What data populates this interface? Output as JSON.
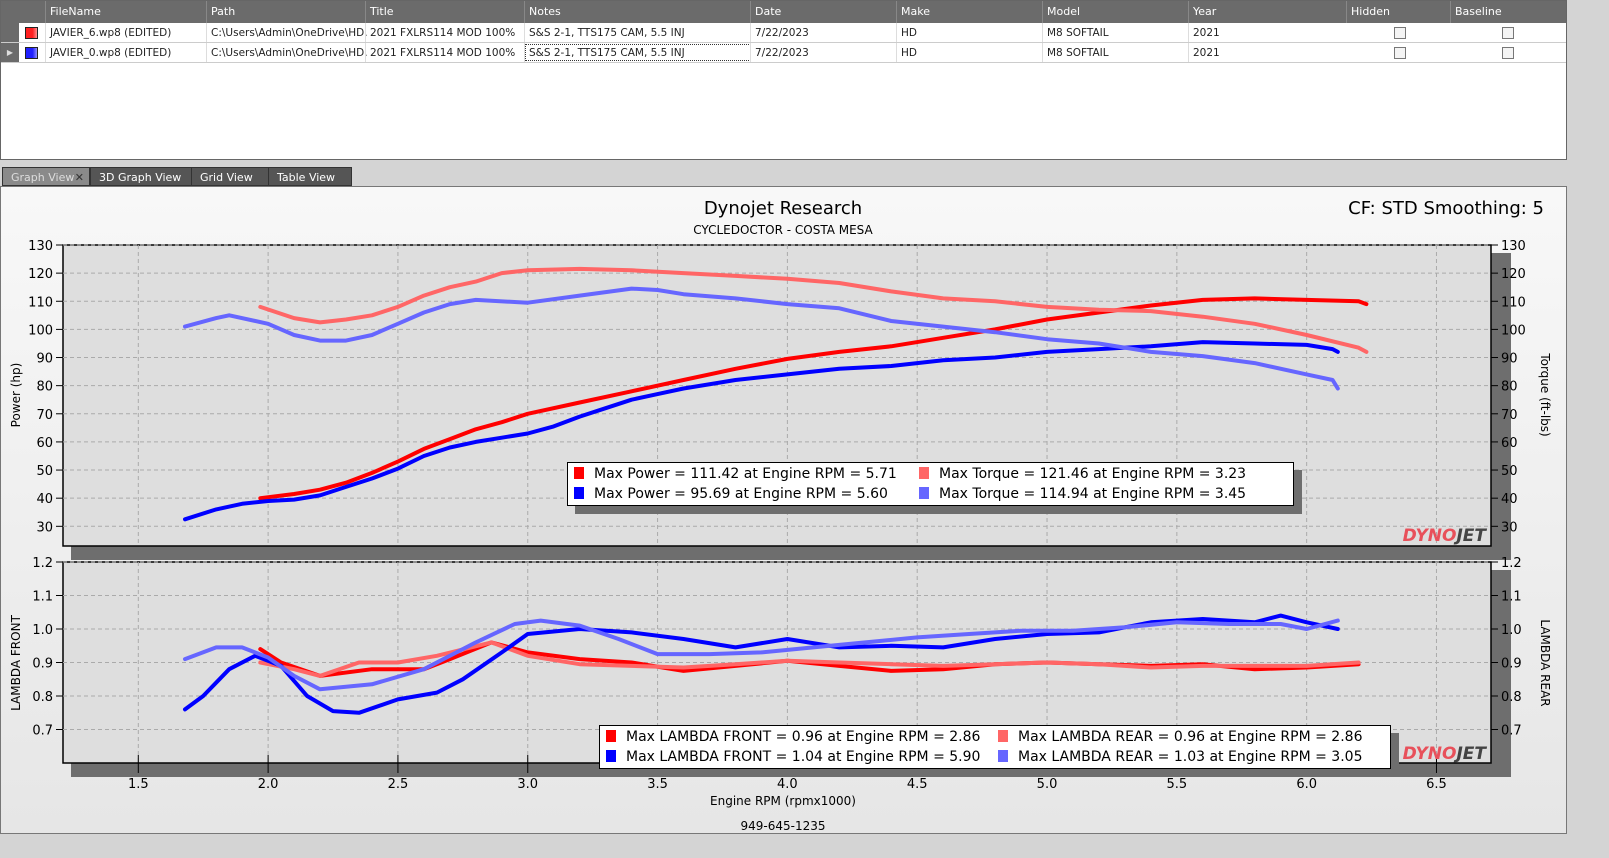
{
  "files_table": {
    "columns": [
      "FileName",
      "Path",
      "Title",
      "Notes",
      "Date",
      "Make",
      "Model",
      "Year",
      "Hidden",
      "Baseline"
    ],
    "rows": [
      {
        "color": "#ff2020",
        "filename": "JAVIER_6.wp8 (EDITED)",
        "path": "C:\\Users\\Admin\\OneDrive\\HD...",
        "title": "2021 FXLRS114 MOD 100%",
        "notes": "S&S 2-1, TTS175 CAM, 5.5 INJ",
        "date": "7/22/2023",
        "make": "HD",
        "model": "M8 SOFTAIL",
        "year": "2021",
        "hidden": false,
        "baseline": false
      },
      {
        "color": "#2020ff",
        "filename": "JAVIER_0.wp8 (EDITED)",
        "path": "C:\\Users\\Admin\\OneDrive\\HD...",
        "title": "2021 FXLRS114 MOD 100%",
        "notes": "S&S 2-1, TTS175 CAM, 5.5 INJ",
        "date": "7/22/2023",
        "make": "HD",
        "model": "M8 SOFTAIL",
        "year": "2021",
        "hidden": false,
        "baseline": false
      }
    ]
  },
  "tabs": [
    {
      "label": "Graph View",
      "active": true,
      "close": "✕"
    },
    {
      "label": "3D Graph View"
    },
    {
      "label": "Grid View"
    },
    {
      "label": "Table View"
    }
  ],
  "graph": {
    "title": "Dynojet Research",
    "subtitle": "CYCLEDOCTOR - COSTA MESA",
    "cf_label": "CF: STD Smoothing: 5",
    "footer": "949-645-1235",
    "logo": "DYNOJET"
  },
  "chart_data": [
    {
      "type": "line",
      "ylabel": "Power (hp)",
      "y2label": "Torque (ft-lbs)",
      "xlabel": "Engine RPM (rpmx1000)",
      "xlim": [
        1.21,
        6.71
      ],
      "ylim": [
        23,
        130
      ],
      "xticks": [
        "1.5",
        "2.0",
        "2.5",
        "3.0",
        "3.5",
        "4.0",
        "4.5",
        "5.0",
        "5.5",
        "6.0",
        "6.5"
      ],
      "yticks": [
        "30",
        "40",
        "50",
        "60",
        "70",
        "80",
        "90",
        "100",
        "110",
        "120",
        "130"
      ],
      "grid": true,
      "series": [
        {
          "color": "#ff0000",
          "points": [
            [
              1.97,
              40
            ],
            [
              2.1,
              41.5
            ],
            [
              2.2,
              43
            ],
            [
              2.3,
              45.5
            ],
            [
              2.4,
              49
            ],
            [
              2.5,
              53
            ],
            [
              2.6,
              57.5
            ],
            [
              2.7,
              61
            ],
            [
              2.8,
              64.5
            ],
            [
              2.9,
              67
            ],
            [
              3.0,
              70
            ],
            [
              3.2,
              74
            ],
            [
              3.4,
              78
            ],
            [
              3.6,
              82
            ],
            [
              3.8,
              86
            ],
            [
              4.0,
              89.5
            ],
            [
              4.2,
              92
            ],
            [
              4.4,
              94
            ],
            [
              4.6,
              97
            ],
            [
              4.8,
              100
            ],
            [
              5.0,
              103.5
            ],
            [
              5.2,
              106
            ],
            [
              5.4,
              108.5
            ],
            [
              5.6,
              110.5
            ],
            [
              5.8,
              111
            ],
            [
              6.0,
              110.5
            ],
            [
              6.2,
              110
            ],
            [
              6.23,
              109
            ]
          ]
        },
        {
          "color": "#0000ff",
          "points": [
            [
              1.68,
              32.5
            ],
            [
              1.8,
              36
            ],
            [
              1.9,
              38
            ],
            [
              2.0,
              39
            ],
            [
              2.1,
              39.5
            ],
            [
              2.2,
              41
            ],
            [
              2.3,
              44
            ],
            [
              2.4,
              47
            ],
            [
              2.5,
              50.5
            ],
            [
              2.6,
              55
            ],
            [
              2.7,
              58
            ],
            [
              2.8,
              60
            ],
            [
              2.9,
              61.5
            ],
            [
              3.0,
              63
            ],
            [
              3.1,
              65.5
            ],
            [
              3.2,
              69
            ],
            [
              3.3,
              72
            ],
            [
              3.4,
              75
            ],
            [
              3.5,
              77
            ],
            [
              3.6,
              79
            ],
            [
              3.8,
              82
            ],
            [
              4.0,
              84
            ],
            [
              4.2,
              86
            ],
            [
              4.4,
              87
            ],
            [
              4.6,
              89
            ],
            [
              4.8,
              90
            ],
            [
              5.0,
              92
            ],
            [
              5.2,
              93
            ],
            [
              5.4,
              94
            ],
            [
              5.6,
              95.5
            ],
            [
              5.8,
              95
            ],
            [
              6.0,
              94.5
            ],
            [
              6.1,
              93
            ],
            [
              6.12,
              92
            ]
          ]
        },
        {
          "color": "#ff6666",
          "points": [
            [
              1.97,
              108
            ],
            [
              2.1,
              104
            ],
            [
              2.2,
              102.5
            ],
            [
              2.3,
              103.5
            ],
            [
              2.4,
              105
            ],
            [
              2.5,
              108
            ],
            [
              2.6,
              112
            ],
            [
              2.7,
              115
            ],
            [
              2.8,
              117
            ],
            [
              2.9,
              120
            ],
            [
              3.0,
              121
            ],
            [
              3.2,
              121.5
            ],
            [
              3.4,
              121
            ],
            [
              3.6,
              120
            ],
            [
              3.8,
              119
            ],
            [
              4.0,
              118
            ],
            [
              4.2,
              116.5
            ],
            [
              4.4,
              113.5
            ],
            [
              4.6,
              111
            ],
            [
              4.8,
              110
            ],
            [
              5.0,
              108
            ],
            [
              5.2,
              107
            ],
            [
              5.4,
              106.5
            ],
            [
              5.6,
              104.5
            ],
            [
              5.8,
              102
            ],
            [
              6.0,
              98
            ],
            [
              6.2,
              93.5
            ],
            [
              6.23,
              92
            ]
          ]
        },
        {
          "color": "#6666ff",
          "points": [
            [
              1.68,
              101
            ],
            [
              1.8,
              104
            ],
            [
              1.85,
              105
            ],
            [
              2.0,
              102
            ],
            [
              2.1,
              98
            ],
            [
              2.2,
              96
            ],
            [
              2.3,
              96
            ],
            [
              2.4,
              98
            ],
            [
              2.5,
              102
            ],
            [
              2.6,
              106
            ],
            [
              2.7,
              109
            ],
            [
              2.8,
              110.5
            ],
            [
              3.0,
              109.5
            ],
            [
              3.2,
              112
            ],
            [
              3.4,
              114.5
            ],
            [
              3.5,
              114
            ],
            [
              3.6,
              112.5
            ],
            [
              3.8,
              111
            ],
            [
              4.0,
              109
            ],
            [
              4.2,
              107.5
            ],
            [
              4.4,
              103
            ],
            [
              4.6,
              101
            ],
            [
              4.8,
              99
            ],
            [
              5.0,
              96.5
            ],
            [
              5.2,
              95
            ],
            [
              5.4,
              92
            ],
            [
              5.6,
              90.5
            ],
            [
              5.8,
              88
            ],
            [
              6.0,
              84
            ],
            [
              6.1,
              82
            ],
            [
              6.12,
              79
            ]
          ]
        }
      ],
      "legend": [
        {
          "color": "#ff0000",
          "text": "Max Power = 111.42 at Engine RPM = 5.71"
        },
        {
          "color": "#ff6666",
          "text": "Max Torque = 121.46 at Engine RPM = 3.23"
        },
        {
          "color": "#0000ff",
          "text": "Max Power = 95.69 at Engine RPM = 5.60"
        },
        {
          "color": "#6666ff",
          "text": "Max Torque = 114.94 at Engine RPM = 3.45"
        }
      ]
    },
    {
      "type": "line",
      "ylabel": "LAMBDA FRONT",
      "y2label": "LAMBDA REAR",
      "xlim": [
        1.21,
        6.71
      ],
      "ylim": [
        0.6,
        1.2
      ],
      "yticks": [
        "0.7",
        "0.8",
        "0.9",
        "1.0",
        "1.1",
        "1.2"
      ],
      "grid": true,
      "series": [
        {
          "color": "#ff0000",
          "points": [
            [
              1.97,
              0.94
            ],
            [
              2.05,
              0.9
            ],
            [
              2.2,
              0.86
            ],
            [
              2.4,
              0.88
            ],
            [
              2.6,
              0.88
            ],
            [
              2.7,
              0.91
            ],
            [
              2.86,
              0.96
            ],
            [
              3.0,
              0.93
            ],
            [
              3.2,
              0.91
            ],
            [
              3.4,
              0.9
            ],
            [
              3.6,
              0.875
            ],
            [
              3.8,
              0.89
            ],
            [
              4.0,
              0.905
            ],
            [
              4.2,
              0.89
            ],
            [
              4.4,
              0.875
            ],
            [
              4.6,
              0.88
            ],
            [
              4.8,
              0.895
            ],
            [
              5.0,
              0.9
            ],
            [
              5.2,
              0.895
            ],
            [
              5.4,
              0.89
            ],
            [
              5.6,
              0.895
            ],
            [
              5.8,
              0.88
            ],
            [
              6.0,
              0.885
            ],
            [
              6.2,
              0.895
            ]
          ]
        },
        {
          "color": "#ff6666",
          "points": [
            [
              1.97,
              0.9
            ],
            [
              2.1,
              0.88
            ],
            [
              2.2,
              0.86
            ],
            [
              2.35,
              0.9
            ],
            [
              2.5,
              0.9
            ],
            [
              2.65,
              0.92
            ],
            [
              2.86,
              0.96
            ],
            [
              3.0,
              0.92
            ],
            [
              3.2,
              0.895
            ],
            [
              3.4,
              0.89
            ],
            [
              3.6,
              0.885
            ],
            [
              3.8,
              0.895
            ],
            [
              4.0,
              0.905
            ],
            [
              4.2,
              0.9
            ],
            [
              4.4,
              0.895
            ],
            [
              4.6,
              0.89
            ],
            [
              4.8,
              0.895
            ],
            [
              5.0,
              0.9
            ],
            [
              5.2,
              0.895
            ],
            [
              5.4,
              0.885
            ],
            [
              5.6,
              0.89
            ],
            [
              5.8,
              0.89
            ],
            [
              6.0,
              0.89
            ],
            [
              6.2,
              0.9
            ]
          ]
        },
        {
          "color": "#0000ff",
          "points": [
            [
              1.68,
              0.76
            ],
            [
              1.75,
              0.8
            ],
            [
              1.85,
              0.88
            ],
            [
              1.95,
              0.92
            ],
            [
              2.05,
              0.89
            ],
            [
              2.15,
              0.8
            ],
            [
              2.25,
              0.755
            ],
            [
              2.35,
              0.75
            ],
            [
              2.5,
              0.79
            ],
            [
              2.65,
              0.81
            ],
            [
              2.75,
              0.85
            ],
            [
              2.9,
              0.93
            ],
            [
              3.0,
              0.985
            ],
            [
              3.2,
              1.0
            ],
            [
              3.4,
              0.99
            ],
            [
              3.6,
              0.97
            ],
            [
              3.8,
              0.945
            ],
            [
              4.0,
              0.97
            ],
            [
              4.2,
              0.945
            ],
            [
              4.4,
              0.95
            ],
            [
              4.6,
              0.945
            ],
            [
              4.8,
              0.97
            ],
            [
              5.0,
              0.985
            ],
            [
              5.2,
              0.99
            ],
            [
              5.4,
              1.02
            ],
            [
              5.6,
              1.03
            ],
            [
              5.8,
              1.02
            ],
            [
              5.9,
              1.04
            ],
            [
              6.0,
              1.02
            ],
            [
              6.12,
              1.0
            ]
          ]
        },
        {
          "color": "#6666ff",
          "points": [
            [
              1.68,
              0.91
            ],
            [
              1.8,
              0.945
            ],
            [
              1.9,
              0.945
            ],
            [
              2.0,
              0.915
            ],
            [
              2.1,
              0.86
            ],
            [
              2.2,
              0.82
            ],
            [
              2.4,
              0.835
            ],
            [
              2.6,
              0.88
            ],
            [
              2.8,
              0.96
            ],
            [
              2.95,
              1.015
            ],
            [
              3.05,
              1.025
            ],
            [
              3.2,
              1.01
            ],
            [
              3.35,
              0.97
            ],
            [
              3.5,
              0.925
            ],
            [
              3.7,
              0.925
            ],
            [
              3.9,
              0.93
            ],
            [
              4.1,
              0.945
            ],
            [
              4.3,
              0.96
            ],
            [
              4.5,
              0.975
            ],
            [
              4.7,
              0.985
            ],
            [
              4.9,
              0.995
            ],
            [
              5.1,
              0.995
            ],
            [
              5.3,
              1.005
            ],
            [
              5.5,
              1.02
            ],
            [
              5.7,
              1.015
            ],
            [
              5.9,
              1.015
            ],
            [
              6.0,
              1.0
            ],
            [
              6.12,
              1.025
            ]
          ]
        }
      ],
      "legend": [
        {
          "color": "#ff0000",
          "text": "Max LAMBDA FRONT = 0.96 at Engine RPM = 2.86"
        },
        {
          "color": "#ff6666",
          "text": "Max LAMBDA REAR = 0.96 at Engine RPM = 2.86"
        },
        {
          "color": "#0000ff",
          "text": "Max LAMBDA FRONT = 1.04 at Engine RPM = 5.90"
        },
        {
          "color": "#6666ff",
          "text": "Max LAMBDA REAR = 1.03 at Engine RPM = 3.05"
        }
      ]
    }
  ]
}
